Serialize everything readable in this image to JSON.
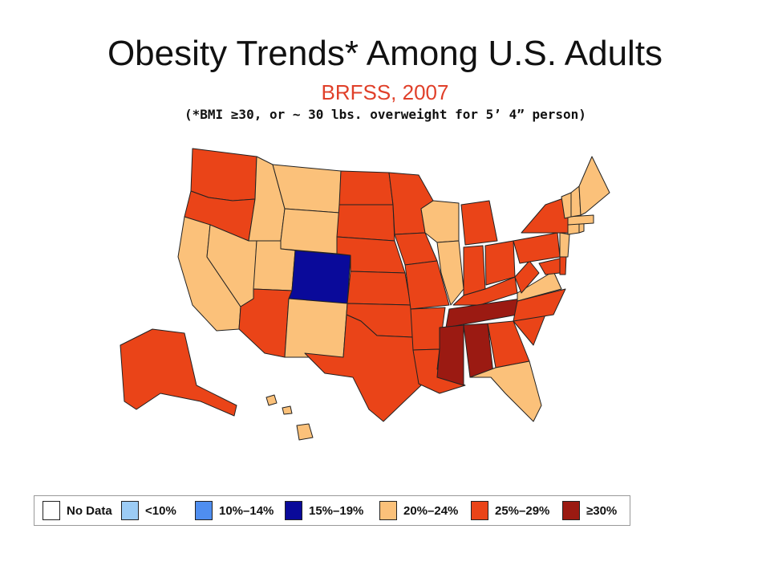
{
  "title": "Obesity Trends* Among U.S. Adults",
  "subtitle": "BRFSS, 2007",
  "note": "(*BMI ≥30, or ~ 30 lbs. overweight for 5’ 4” person)",
  "legend": [
    {
      "label": "No Data",
      "color": "#ffffff"
    },
    {
      "label": "<10%",
      "color": "#9cccf5"
    },
    {
      "label": "10%–14%",
      "color": "#4f8ef0"
    },
    {
      "label": "15%–19%",
      "color": "#0a0a9a"
    },
    {
      "label": "20%–24%",
      "color": "#fbc17a"
    },
    {
      "label": "25%–29%",
      "color": "#ea4418"
    },
    {
      "label": "≥30%",
      "color": "#9b1a12"
    }
  ],
  "map_data": {
    "type": "choropleth",
    "categories": {
      "15%–19%": [
        "Colorado"
      ],
      "20%–24%": [
        "California",
        "Nevada",
        "Idaho",
        "Montana",
        "Wyoming",
        "Utah",
        "New Mexico",
        "Wisconsin",
        "Illinois",
        "Virginia",
        "Florida",
        "Hawaii",
        "New Jersey",
        "Connecticut",
        "Massachusetts",
        "Vermont",
        "New Hampshire",
        "Maine",
        "Rhode Island"
      ],
      "25%–29%": [
        "Washington",
        "Oregon",
        "Arizona",
        "North Dakota",
        "South Dakota",
        "Nebraska",
        "Kansas",
        "Oklahoma",
        "Texas",
        "Minnesota",
        "Iowa",
        "Missouri",
        "Arkansas",
        "Louisiana",
        "Michigan",
        "Indiana",
        "Ohio",
        "Kentucky",
        "West Virginia",
        "Pennsylvania",
        "New York",
        "Maryland",
        "Delaware",
        "North Carolina",
        "South Carolina",
        "Georgia",
        "Alaska"
      ],
      "≥30%": [
        "Mississippi",
        "Alabama",
        "Tennessee"
      ]
    }
  }
}
